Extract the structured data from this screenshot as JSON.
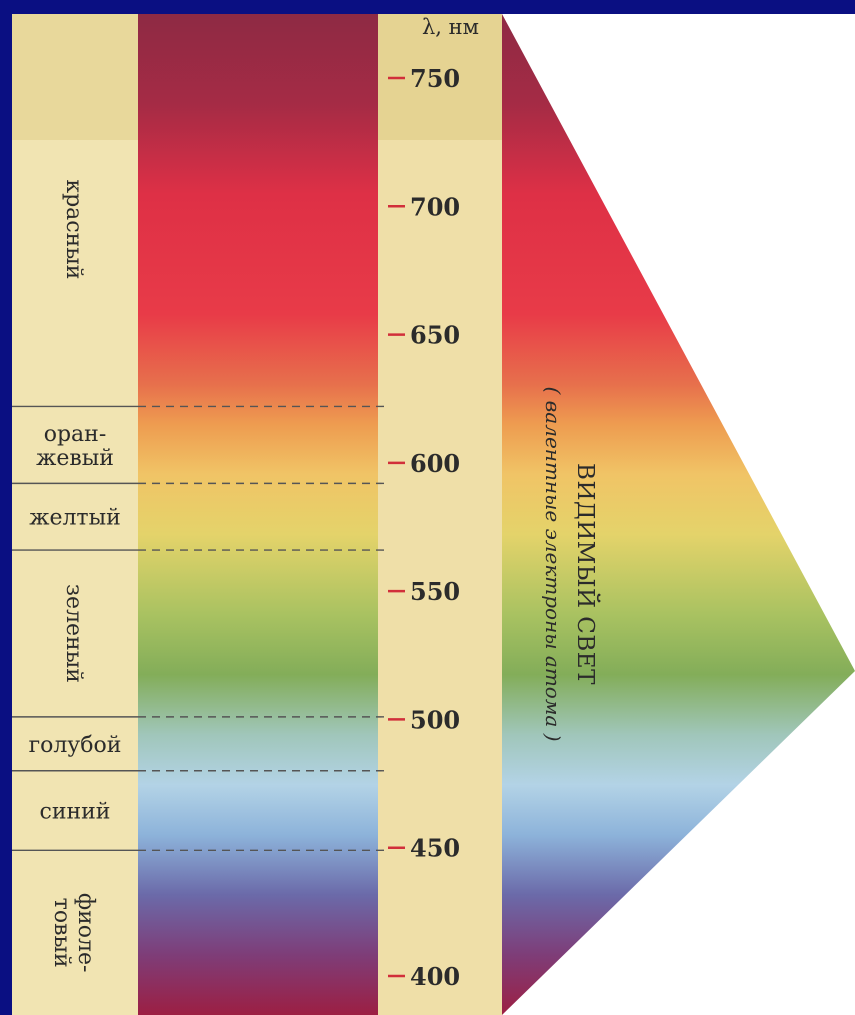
{
  "diagram": {
    "axis_label": "λ, нм",
    "title": "ВИДИМЫЙ СВЕТ",
    "subtitle": "( валентные электроны атома )",
    "ticks": [
      {
        "label": "750",
        "value": 750
      },
      {
        "label": "700",
        "value": 700
      },
      {
        "label": "650",
        "value": 650
      },
      {
        "label": "600",
        "value": 600
      },
      {
        "label": "550",
        "value": 550
      },
      {
        "label": "500",
        "value": 500
      },
      {
        "label": "450",
        "value": 450
      },
      {
        "label": "400",
        "value": 400
      }
    ],
    "bands": [
      {
        "key": "red",
        "label": "красный",
        "from": 622,
        "to": 760
      },
      {
        "key": "orange",
        "line1": "оран-",
        "line2": "жевый",
        "from": 592,
        "to": 622
      },
      {
        "key": "yellow",
        "label": "желтый",
        "from": 566,
        "to": 592
      },
      {
        "key": "green",
        "label": "зеленый",
        "from": 501,
        "to": 566
      },
      {
        "key": "cyan",
        "label": "голубой",
        "from": 480,
        "to": 501
      },
      {
        "key": "blue",
        "label": "синий",
        "from": 449,
        "to": 480
      },
      {
        "key": "violet",
        "line1": "фиоле-",
        "line2": "товый",
        "from": 380,
        "to": 449
      }
    ]
  }
}
